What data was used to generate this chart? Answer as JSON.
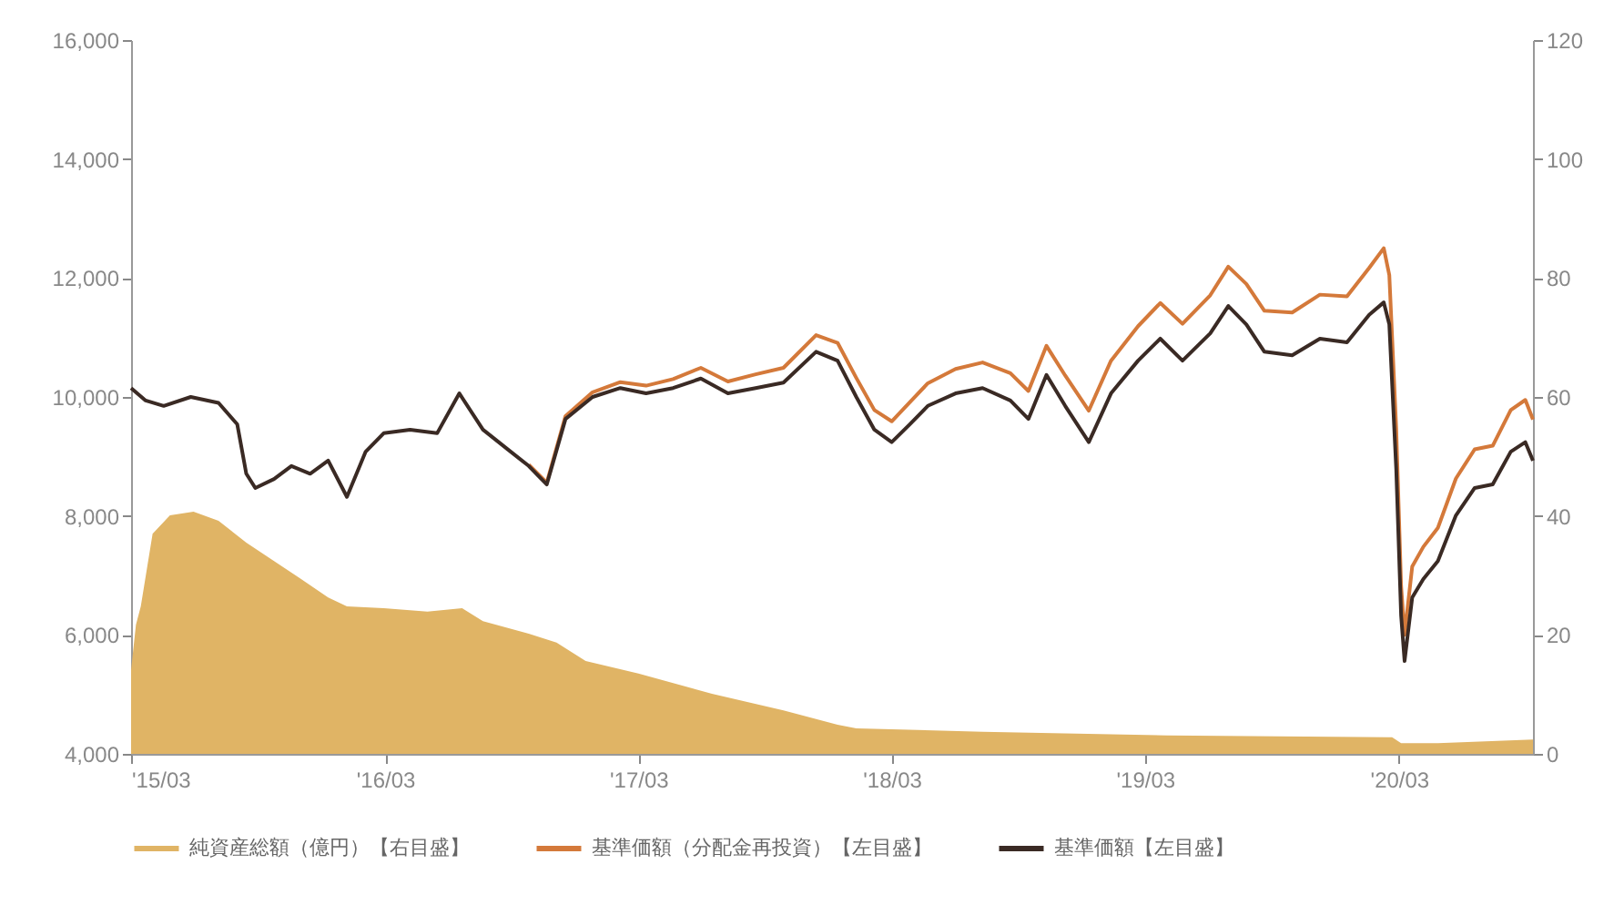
{
  "chart_data": {
    "type": "line",
    "series": [
      {
        "name": "純資産総額（億円）【右目盛】",
        "type": "area",
        "axis": "y2",
        "color": "#e0b465",
        "x": [
          "2015-03-01",
          "2015-03-08",
          "2015-03-15",
          "2015-04-01",
          "2015-04-26",
          "2015-05-30",
          "2015-07-05",
          "2015-08-14",
          "2015-09-23",
          "2015-11-01",
          "2015-12-10",
          "2016-01-06",
          "2016-02-28",
          "2016-05-01",
          "2016-06-20",
          "2016-07-20",
          "2016-09-24",
          "2016-11-03",
          "2016-12-15",
          "2017-03-01",
          "2017-06-15",
          "2017-09-26",
          "2017-12-13",
          "2018-01-09",
          "2018-07-10",
          "2019-04-01",
          "2020-02-20",
          "2020-03-04",
          "2020-04-26",
          "2020-09-10"
        ],
        "values": [
          14.1,
          21.7,
          24.8,
          37,
          40.1,
          40.7,
          39.2,
          35.5,
          32.4,
          29.4,
          26.3,
          24.8,
          24.5,
          23.9,
          24.5,
          22.3,
          20.2,
          18.7,
          15.6,
          13.5,
          10.1,
          7.3,
          4.9,
          4.3,
          3.7,
          3.1,
          2.8,
          1.8,
          1.8,
          2.4
        ]
      },
      {
        "name": "基準価額（分配金再投資）【左目盛】",
        "color": "#d4793a",
        "x": [
          "2016-09-24",
          "2016-10-20",
          "2016-11-16",
          "2016-12-25",
          "2017-02-03",
          "2017-03-12",
          "2017-04-20",
          "2017-05-30",
          "2017-07-08",
          "2017-08-17",
          "2017-09-26",
          "2017-11-12",
          "2017-12-13",
          "2018-01-09",
          "2018-02-04",
          "2018-03-01",
          "2018-03-27",
          "2018-04-22",
          "2018-06-01",
          "2018-07-10",
          "2018-08-19",
          "2018-09-14",
          "2018-10-10",
          "2018-11-06",
          "2018-12-10",
          "2019-01-11",
          "2019-02-19",
          "2019-03-23",
          "2019-04-24",
          "2019-06-03",
          "2019-06-29",
          "2019-07-25",
          "2019-08-20",
          "2019-09-29",
          "2019-11-08",
          "2019-12-17",
          "2020-01-18",
          "2020-02-08",
          "2020-02-16",
          "2020-02-26",
          "2020-03-04",
          "2020-03-09",
          "2020-03-20",
          "2020-04-05",
          "2020-04-26",
          "2020-05-22",
          "2020-06-18",
          "2020-07-14",
          "2020-08-09",
          "2020-08-30",
          "2020-09-10"
        ],
        "values": [
          8860,
          8560,
          9680,
          10080,
          10250,
          10190,
          10300,
          10490,
          10260,
          10380,
          10490,
          11040,
          10910,
          10320,
          9780,
          9590,
          9910,
          10230,
          10470,
          10580,
          10400,
          10100,
          10860,
          10360,
          9770,
          10610,
          11190,
          11580,
          11230,
          11710,
          12190,
          11900,
          11450,
          11420,
          11720,
          11690,
          12170,
          12500,
          12050,
          9450,
          6820,
          6000,
          7150,
          7480,
          7800,
          8630,
          9120,
          9180,
          9780,
          9950,
          9620
        ]
      },
      {
        "name": "基準価額【左目盛】",
        "color": "#3a2a24",
        "x": [
          "2015-03-01",
          "2015-03-22",
          "2015-04-17",
          "2015-05-26",
          "2015-07-05",
          "2015-08-01",
          "2015-08-14",
          "2015-08-27",
          "2015-09-23",
          "2015-10-18",
          "2015-11-14",
          "2015-12-10",
          "2016-01-06",
          "2016-02-02",
          "2016-02-28",
          "2016-04-06",
          "2016-05-15",
          "2016-06-16",
          "2016-07-20",
          "2016-08-29",
          "2016-09-24",
          "2016-10-20",
          "2016-11-16",
          "2016-12-25",
          "2017-02-03",
          "2017-03-12",
          "2017-04-20",
          "2017-05-30",
          "2017-07-08",
          "2017-08-17",
          "2017-09-26",
          "2017-11-12",
          "2017-12-13",
          "2018-01-09",
          "2018-02-04",
          "2018-03-01",
          "2018-03-27",
          "2018-04-22",
          "2018-06-01",
          "2018-07-10",
          "2018-08-19",
          "2018-09-14",
          "2018-10-10",
          "2018-11-06",
          "2018-12-10",
          "2019-01-11",
          "2019-02-19",
          "2019-03-23",
          "2019-04-24",
          "2019-06-03",
          "2019-06-29",
          "2019-07-25",
          "2019-08-20",
          "2019-09-29",
          "2019-11-08",
          "2019-12-17",
          "2020-01-18",
          "2020-02-08",
          "2020-02-16",
          "2020-02-26",
          "2020-03-04",
          "2020-03-09",
          "2020-03-20",
          "2020-04-05",
          "2020-04-26",
          "2020-05-22",
          "2020-06-18",
          "2020-07-14",
          "2020-08-09",
          "2020-08-30",
          "2020-09-10"
        ],
        "values": [
          10150,
          9940,
          9850,
          10000,
          9900,
          9540,
          8710,
          8470,
          8620,
          8840,
          8710,
          8930,
          8320,
          9080,
          9390,
          9450,
          9390,
          10060,
          9450,
          9080,
          8840,
          8530,
          9630,
          10000,
          10150,
          10060,
          10150,
          10310,
          10060,
          10150,
          10240,
          10760,
          10610,
          10000,
          9450,
          9240,
          9540,
          9850,
          10060,
          10150,
          9940,
          9630,
          10370,
          9850,
          9240,
          10060,
          10610,
          10980,
          10610,
          11070,
          11530,
          11220,
          10760,
          10700,
          10980,
          10920,
          11380,
          11590,
          11220,
          8780,
          6330,
          5560,
          6630,
          6940,
          7240,
          8010,
          8470,
          8530,
          9080,
          9240,
          8930
        ]
      }
    ],
    "xlim": [
      "2015-03-01",
      "2020-09-10"
    ],
    "xticks": [
      {
        "value": "2015-03-01",
        "label": "'15/03"
      },
      {
        "value": "2016-03-01",
        "label": "'16/03"
      },
      {
        "value": "2017-03-01",
        "label": "'17/03"
      },
      {
        "value": "2018-03-01",
        "label": "'18/03"
      },
      {
        "value": "2019-03-01",
        "label": "'19/03"
      },
      {
        "value": "2020-03-01",
        "label": "'20/03"
      }
    ],
    "ylim": [
      4000,
      16000
    ],
    "yticks": [
      {
        "value": 4000,
        "label": "4,000"
      },
      {
        "value": 6000,
        "label": "6,000"
      },
      {
        "value": 8000,
        "label": "8,000"
      },
      {
        "value": 10000,
        "label": "10,000"
      },
      {
        "value": 12000,
        "label": "12,000"
      },
      {
        "value": 14000,
        "label": "14,000"
      },
      {
        "value": 16000,
        "label": "16,000"
      }
    ],
    "y2lim": [
      0,
      120
    ],
    "y2ticks": [
      0,
      20,
      40,
      60,
      80,
      100,
      120
    ],
    "legend": "bottom"
  }
}
